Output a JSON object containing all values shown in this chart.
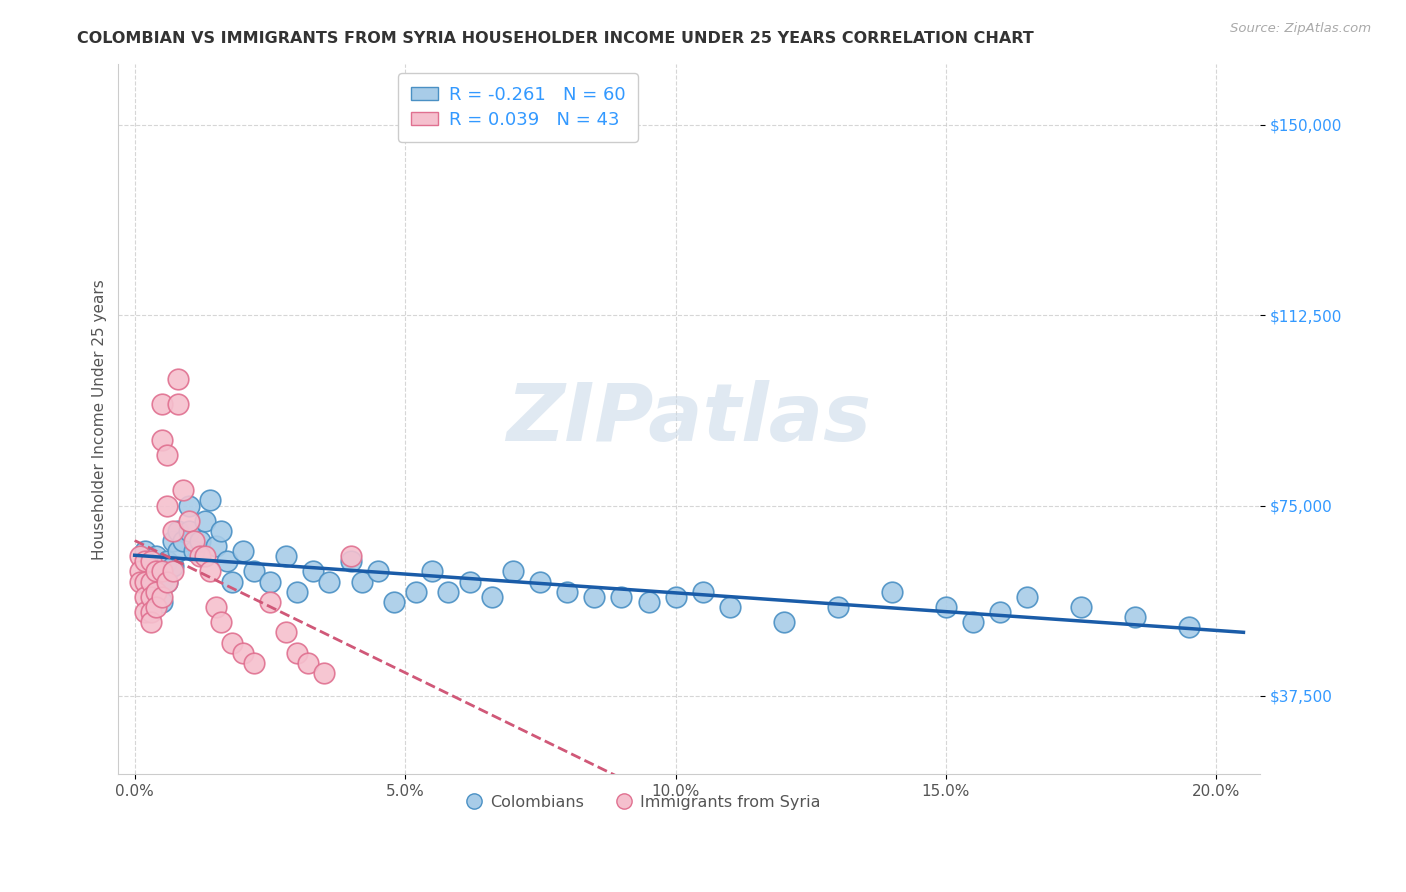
{
  "title": "COLOMBIAN VS IMMIGRANTS FROM SYRIA HOUSEHOLDER INCOME UNDER 25 YEARS CORRELATION CHART",
  "source": "Source: ZipAtlas.com",
  "ylabel": "Householder Income Under 25 years",
  "xlabel_ticks": [
    0.0,
    0.05,
    0.1,
    0.15,
    0.2
  ],
  "xlabel_labels": [
    "0.0%",
    "5.0%",
    "10.0%",
    "15.0%",
    "20.0%"
  ],
  "ytick_vals": [
    37500,
    75000,
    112500,
    150000
  ],
  "ytick_labels": [
    "$37,500",
    "$75,000",
    "$112,500",
    "$150,000"
  ],
  "xlim": [
    -0.003,
    0.208
  ],
  "ylim": [
    22000,
    162000
  ],
  "colombian_R": "-0.261",
  "colombian_N": "60",
  "syria_R": "0.039",
  "syria_N": "43",
  "legend1_label": "Colombians",
  "legend2_label": "Immigrants from Syria",
  "blue_color": "#a8cce8",
  "blue_edge_color": "#4a90c4",
  "blue_line_color": "#1a5ca8",
  "pink_color": "#f5c0ce",
  "pink_edge_color": "#e07090",
  "pink_line_color": "#d05878",
  "watermark": "ZIPatlas",
  "colombian_x": [
    0.002,
    0.003,
    0.003,
    0.004,
    0.004,
    0.005,
    0.005,
    0.005,
    0.006,
    0.006,
    0.007,
    0.007,
    0.008,
    0.008,
    0.009,
    0.01,
    0.01,
    0.011,
    0.012,
    0.013,
    0.014,
    0.015,
    0.016,
    0.017,
    0.018,
    0.02,
    0.022,
    0.025,
    0.028,
    0.03,
    0.033,
    0.036,
    0.04,
    0.042,
    0.045,
    0.048,
    0.052,
    0.055,
    0.058,
    0.062,
    0.066,
    0.07,
    0.075,
    0.08,
    0.085,
    0.09,
    0.095,
    0.1,
    0.105,
    0.11,
    0.12,
    0.13,
    0.14,
    0.15,
    0.155,
    0.16,
    0.165,
    0.175,
    0.185,
    0.195
  ],
  "colombian_y": [
    66000,
    64000,
    60000,
    65000,
    58000,
    62000,
    60000,
    56000,
    64000,
    60000,
    68000,
    63000,
    70000,
    66000,
    68000,
    75000,
    70000,
    66000,
    68000,
    72000,
    76000,
    67000,
    70000,
    64000,
    60000,
    66000,
    62000,
    60000,
    65000,
    58000,
    62000,
    60000,
    64000,
    60000,
    62000,
    56000,
    58000,
    62000,
    58000,
    60000,
    57000,
    62000,
    60000,
    58000,
    57000,
    57000,
    56000,
    57000,
    58000,
    55000,
    52000,
    55000,
    58000,
    55000,
    52000,
    54000,
    57000,
    55000,
    53000,
    51000
  ],
  "syria_x": [
    0.001,
    0.001,
    0.001,
    0.002,
    0.002,
    0.002,
    0.002,
    0.003,
    0.003,
    0.003,
    0.003,
    0.003,
    0.004,
    0.004,
    0.004,
    0.005,
    0.005,
    0.005,
    0.005,
    0.006,
    0.006,
    0.006,
    0.007,
    0.007,
    0.008,
    0.008,
    0.009,
    0.01,
    0.011,
    0.012,
    0.013,
    0.014,
    0.015,
    0.016,
    0.018,
    0.02,
    0.022,
    0.025,
    0.028,
    0.03,
    0.032,
    0.035,
    0.04
  ],
  "syria_y": [
    65000,
    62000,
    60000,
    64000,
    60000,
    57000,
    54000,
    64000,
    60000,
    57000,
    54000,
    52000,
    62000,
    58000,
    55000,
    95000,
    88000,
    62000,
    57000,
    85000,
    75000,
    60000,
    70000,
    62000,
    100000,
    95000,
    78000,
    72000,
    68000,
    65000,
    65000,
    62000,
    55000,
    52000,
    48000,
    46000,
    44000,
    56000,
    50000,
    46000,
    44000,
    42000,
    65000
  ],
  "col_trendline_x": [
    0.0,
    0.205
  ],
  "syr_trendline_x": [
    0.0,
    0.205
  ]
}
